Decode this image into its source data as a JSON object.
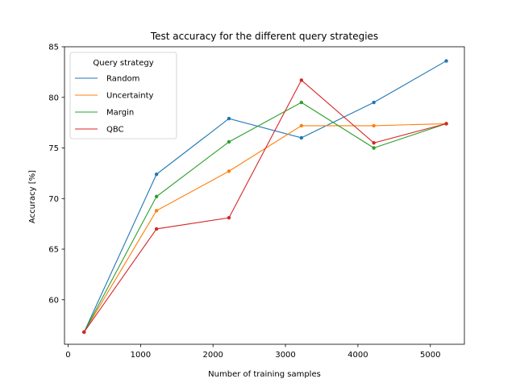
{
  "chart_data": {
    "type": "line",
    "title": "Test accuracy for the different query strategies",
    "xlabel": "Number of training samples",
    "ylabel": "Accuracy [%]",
    "xlim": [
      -50,
      5470
    ],
    "ylim": [
      55.6,
      85.0
    ],
    "xticks": [
      0,
      1000,
      2000,
      3000,
      4000,
      5000
    ],
    "yticks": [
      60,
      65,
      70,
      75,
      80,
      85
    ],
    "x": [
      220,
      1220,
      2220,
      3220,
      4220,
      5220
    ],
    "legend": {
      "title": "Query strategy",
      "placement": "top-left"
    },
    "grid": false,
    "series": [
      {
        "name": "Random",
        "color": "#1f77b4",
        "values": [
          56.8,
          72.4,
          77.9,
          76.0,
          79.5,
          83.6
        ]
      },
      {
        "name": "Uncertainty",
        "color": "#ff7f0e",
        "values": [
          56.8,
          68.8,
          72.7,
          77.2,
          77.2,
          77.4
        ]
      },
      {
        "name": "Margin",
        "color": "#2ca02c",
        "values": [
          56.8,
          70.2,
          75.6,
          79.5,
          75.0,
          77.4
        ]
      },
      {
        "name": "QBC",
        "color": "#d62728",
        "values": [
          56.8,
          67.0,
          68.1,
          81.7,
          75.5,
          77.4
        ]
      }
    ]
  }
}
